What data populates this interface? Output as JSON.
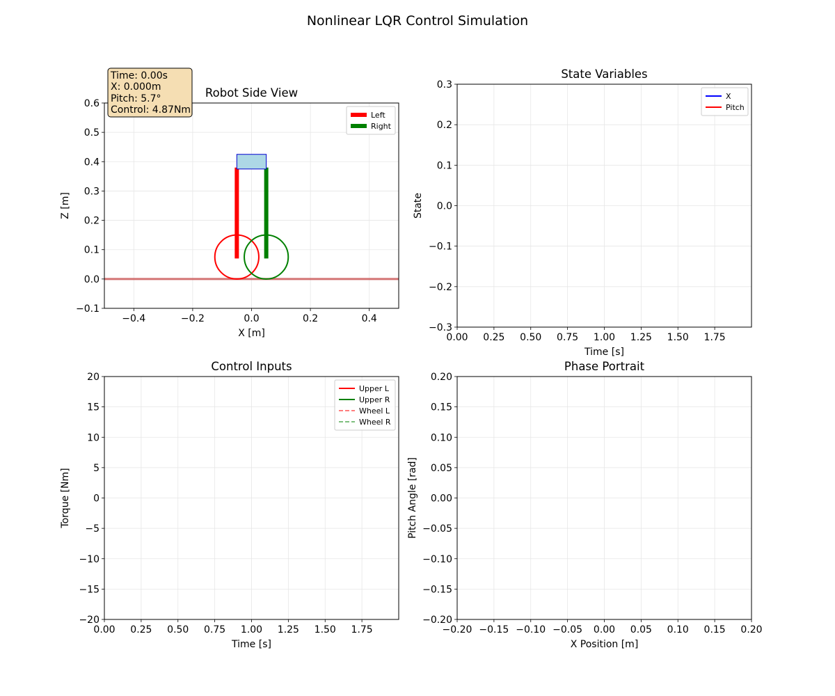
{
  "figure": {
    "title": "Nonlinear LQR Control Simulation"
  },
  "status_box": {
    "time": "Time: 0.00s",
    "x": "X: 0.000m",
    "pitch": "Pitch: 5.7°",
    "control": "Control: 4.87Nm",
    "bg_color": "#f5deb3"
  },
  "colors": {
    "left": "#ff0000",
    "right": "#008000",
    "body_fill": "#add8e6",
    "body_edge": "#0000cd",
    "ground": "#cd5c5c",
    "x_series": "#0000ff",
    "pitch_series": "#ff0000",
    "grid": "#e6e6e6"
  },
  "chart_data": [
    {
      "id": "robot",
      "type": "scatter",
      "title": "Robot Side View",
      "xlabel": "X [m]",
      "ylabel": "Z [m]",
      "xlim": [
        -0.5,
        0.5
      ],
      "ylim": [
        -0.1,
        0.6
      ],
      "xticks": [
        -0.4,
        -0.2,
        0.0,
        0.2,
        0.4
      ],
      "xtick_labels": [
        "−0.4",
        "−0.2",
        "0.0",
        "0.2",
        "0.4"
      ],
      "yticks": [
        -0.1,
        0.0,
        0.1,
        0.2,
        0.3,
        0.4,
        0.5,
        0.6
      ],
      "ytick_labels": [
        "−0.1",
        "0.0",
        "0.1",
        "0.2",
        "0.3",
        "0.4",
        "0.5",
        "0.6"
      ],
      "grid": true,
      "legend": {
        "placement": "upper right",
        "entries": [
          "Left",
          "Right"
        ]
      },
      "robot": {
        "ground_z": 0.0,
        "wheel_radius": 0.075,
        "left_wheel_center": [
          -0.05,
          0.075
        ],
        "right_wheel_center": [
          0.05,
          0.075
        ],
        "left_leg": [
          [
            -0.05,
            0.07
          ],
          [
            -0.05,
            0.38
          ]
        ],
        "right_leg": [
          [
            0.05,
            0.07
          ],
          [
            0.05,
            0.38
          ]
        ],
        "body_rect": {
          "x0": -0.05,
          "x1": 0.05,
          "z0": 0.375,
          "z1": 0.425
        }
      }
    },
    {
      "id": "state",
      "type": "line",
      "title": "State Variables",
      "xlabel": "Time [s]",
      "ylabel": "State",
      "xlim": [
        0.0,
        2.0
      ],
      "ylim": [
        -0.3,
        0.3
      ],
      "xticks": [
        0.0,
        0.25,
        0.5,
        0.75,
        1.0,
        1.25,
        1.5,
        1.75
      ],
      "xtick_labels": [
        "0.00",
        "0.25",
        "0.50",
        "0.75",
        "1.00",
        "1.25",
        "1.50",
        "1.75"
      ],
      "yticks": [
        -0.3,
        -0.2,
        -0.1,
        0.0,
        0.1,
        0.2,
        0.3
      ],
      "ytick_labels": [
        "−0.3",
        "−0.2",
        "−0.1",
        "0.0",
        "0.1",
        "0.2",
        "0.3"
      ],
      "grid": true,
      "legend": {
        "placement": "upper right",
        "entries": [
          "X",
          "Pitch"
        ]
      },
      "series": [
        {
          "name": "X",
          "values": []
        },
        {
          "name": "Pitch",
          "values": []
        }
      ]
    },
    {
      "id": "control",
      "type": "line",
      "title": "Control Inputs",
      "xlabel": "Time [s]",
      "ylabel": "Torque [Nm]",
      "xlim": [
        0.0,
        2.0
      ],
      "ylim": [
        -20,
        20
      ],
      "xticks": [
        0.0,
        0.25,
        0.5,
        0.75,
        1.0,
        1.25,
        1.5,
        1.75
      ],
      "xtick_labels": [
        "0.00",
        "0.25",
        "0.50",
        "0.75",
        "1.00",
        "1.25",
        "1.50",
        "1.75"
      ],
      "yticks": [
        -20,
        -15,
        -10,
        -5,
        0,
        5,
        10,
        15,
        20
      ],
      "ytick_labels": [
        "−20",
        "−15",
        "−10",
        "−5",
        "0",
        "5",
        "10",
        "15",
        "20"
      ],
      "grid": true,
      "legend": {
        "placement": "upper right",
        "entries": [
          "Upper L",
          "Upper R",
          "Wheel L",
          "Wheel R"
        ]
      },
      "series": [
        {
          "name": "Upper L",
          "values": []
        },
        {
          "name": "Upper R",
          "values": []
        },
        {
          "name": "Wheel L",
          "values": []
        },
        {
          "name": "Wheel R",
          "values": []
        }
      ]
    },
    {
      "id": "phase",
      "type": "line",
      "title": "Phase Portrait",
      "xlabel": "X Position [m]",
      "ylabel": "Pitch Angle [rad]",
      "xlim": [
        -0.2,
        0.2
      ],
      "ylim": [
        -0.2,
        0.2
      ],
      "xticks": [
        -0.2,
        -0.15,
        -0.1,
        -0.05,
        0.0,
        0.05,
        0.1,
        0.15,
        0.2
      ],
      "xtick_labels": [
        "−0.20",
        "−0.15",
        "−0.10",
        "−0.05",
        "0.00",
        "0.05",
        "0.10",
        "0.15",
        "0.20"
      ],
      "yticks": [
        -0.2,
        -0.15,
        -0.1,
        -0.05,
        0.0,
        0.05,
        0.1,
        0.15,
        0.2
      ],
      "ytick_labels": [
        "−0.20",
        "−0.15",
        "−0.10",
        "−0.05",
        "0.00",
        "0.05",
        "0.10",
        "0.15",
        "0.20"
      ],
      "grid": true,
      "series": [
        {
          "values": []
        }
      ]
    }
  ]
}
